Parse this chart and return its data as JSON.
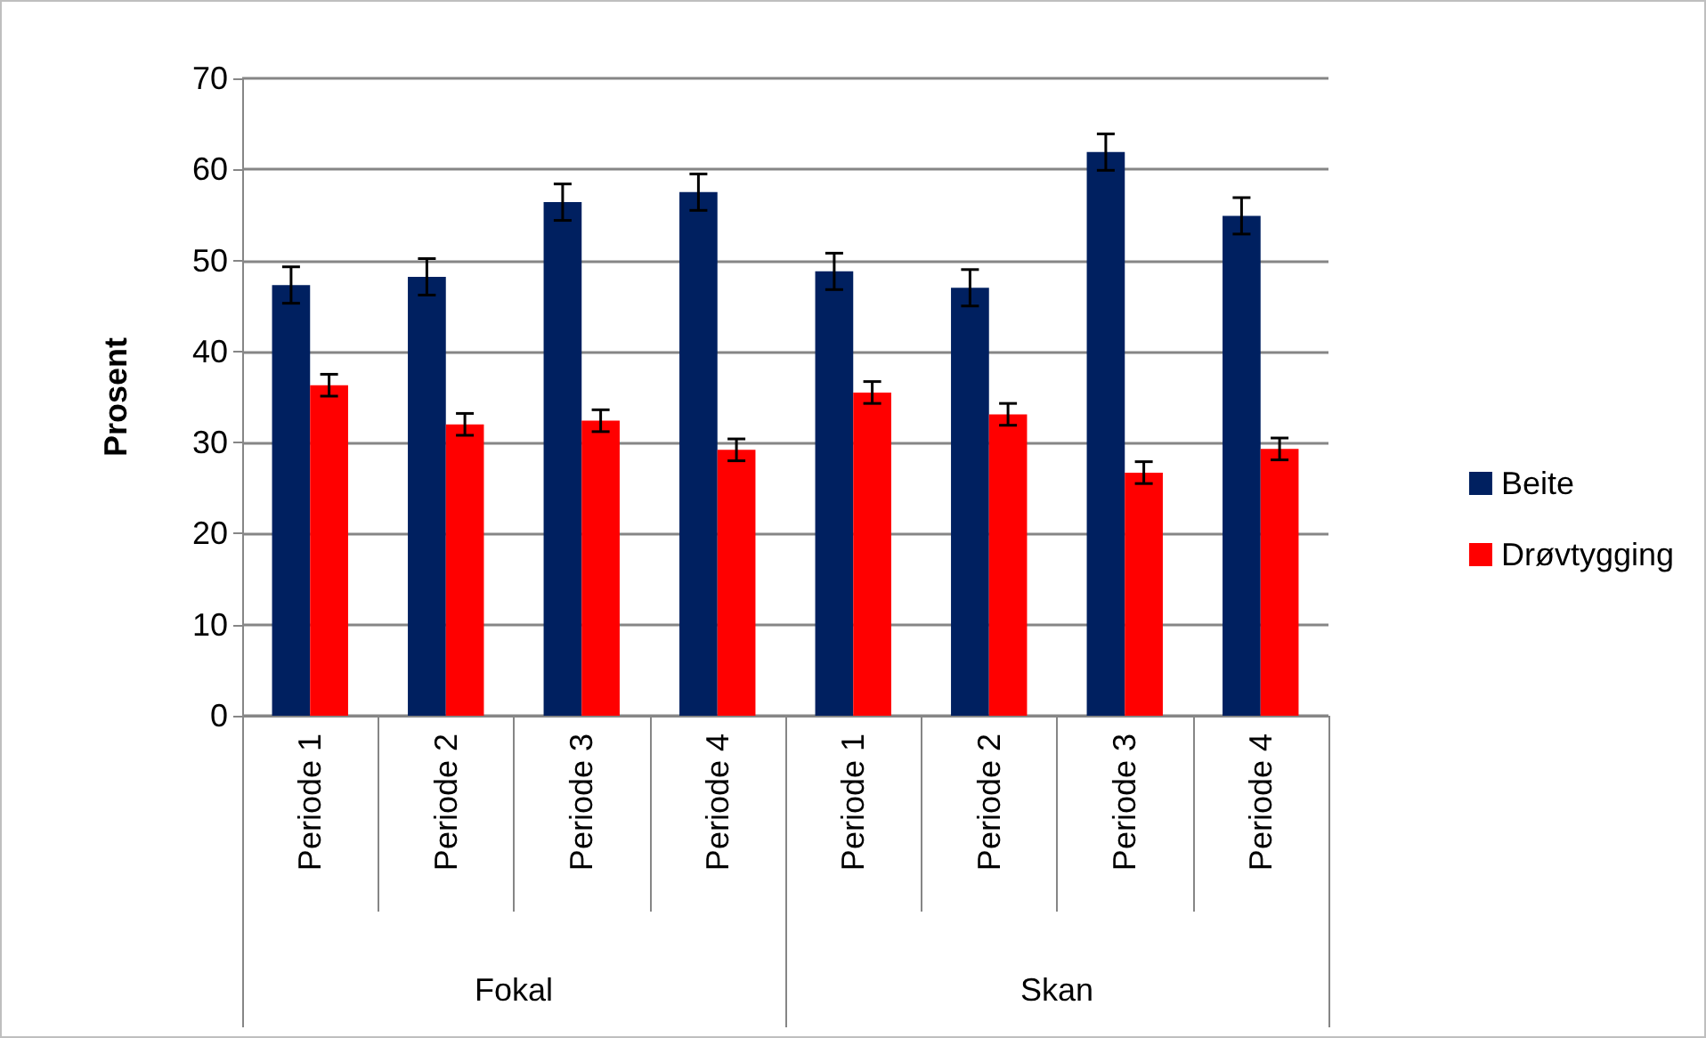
{
  "chart_data": {
    "type": "bar",
    "ylabel": "Prosent",
    "categories": [
      "Periode 1",
      "Periode 2",
      "Periode 3",
      "Periode 4",
      "Periode 1",
      "Periode 2",
      "Periode 3",
      "Periode 4"
    ],
    "series": [
      {
        "name": "Beite",
        "color": "#002060",
        "values": [
          47.3,
          48.2,
          56.4,
          57.5,
          48.8,
          47.0,
          61.9,
          54.9
        ],
        "errors": [
          2,
          2,
          2,
          2,
          2,
          2,
          2,
          2
        ]
      },
      {
        "name": "Drøvtygging",
        "color": "#ff0000",
        "values": [
          36.3,
          32.0,
          32.4,
          29.2,
          35.5,
          33.1,
          26.7,
          29.3
        ],
        "errors": [
          1.2,
          1.2,
          1.2,
          1.2,
          1.2,
          1.2,
          1.2,
          1.2
        ]
      }
    ],
    "annotations": [
      "Fokal",
      "Skan"
    ],
    "ylim": [
      0,
      70
    ],
    "yticks": [
      0,
      10,
      20,
      30,
      40,
      50,
      60,
      70
    ],
    "grid": "y",
    "legend": "right"
  }
}
